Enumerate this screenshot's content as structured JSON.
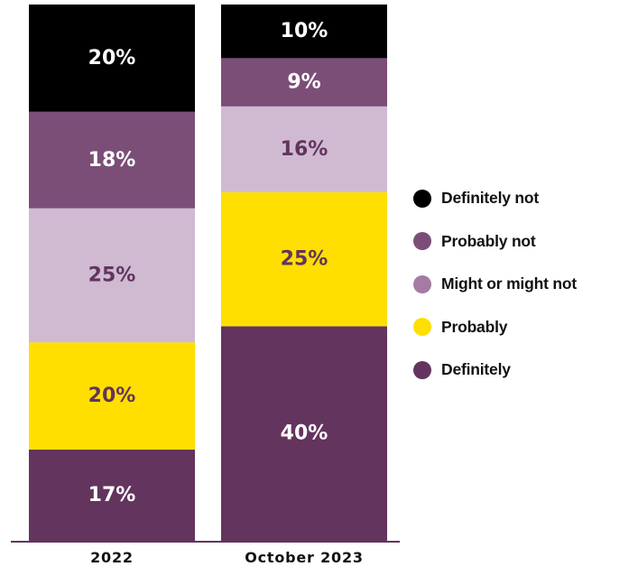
{
  "chart_data": {
    "type": "bar",
    "stacked": true,
    "normalized": true,
    "categories": [
      "2022",
      "October 2023"
    ],
    "series": [
      {
        "name": "Definitely",
        "color": "#63345e",
        "label_color": "#ffffff",
        "values": [
          17,
          40
        ],
        "labels": [
          "17%",
          "40%"
        ]
      },
      {
        "name": "Probably",
        "color": "#ffdf00",
        "label_color": "#63345e",
        "values": [
          20,
          25
        ],
        "labels": [
          "20%",
          "25%"
        ]
      },
      {
        "name": "Might or might not",
        "color": "#cfbad2",
        "label_color": "#63345e",
        "values": [
          25,
          16
        ],
        "labels": [
          "25%",
          "16%"
        ]
      },
      {
        "name": "Probably not",
        "color": "#7b4e78",
        "label_color": "#ffffff",
        "values": [
          18,
          9
        ],
        "labels": [
          "18%",
          "9%"
        ]
      },
      {
        "name": "Definitely not",
        "color": "#000000",
        "label_color": "#ffffff",
        "values": [
          20,
          10
        ],
        "labels": [
          "20%",
          "10%"
        ]
      }
    ],
    "legend": {
      "position": "right",
      "items": [
        {
          "name": "Definitely not",
          "color": "#000000"
        },
        {
          "name": "Probably not",
          "color": "#7b4e78"
        },
        {
          "name": "Might or might not",
          "color": "#a47ba3"
        },
        {
          "name": "Probably",
          "color": "#ffdf00"
        },
        {
          "name": "Definitely",
          "color": "#63345e"
        }
      ]
    },
    "axis_color": "#63345e",
    "grid": false
  }
}
